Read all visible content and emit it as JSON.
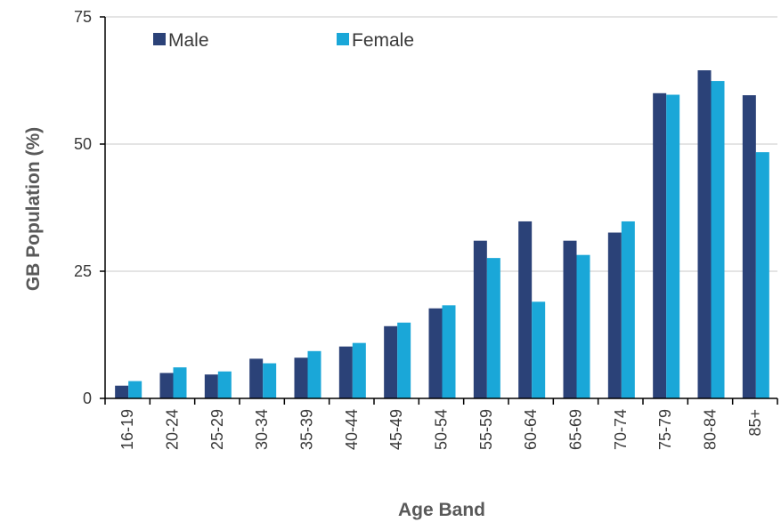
{
  "chart_data": {
    "type": "bar",
    "title": "",
    "xlabel": "Age Band",
    "ylabel": "GB Population (%)",
    "ylim": [
      0,
      75
    ],
    "yticks": [
      0,
      25,
      50,
      75
    ],
    "grid": true,
    "legend_position": "top-left",
    "categories": [
      "16-19",
      "20-24",
      "25-29",
      "30-34",
      "35-39",
      "40-44",
      "45-49",
      "50-54",
      "55-59",
      "60-64",
      "65-69",
      "70-74",
      "75-79",
      "80-84",
      "85+"
    ],
    "series": [
      {
        "name": "Male",
        "color": "#2b4278",
        "values": [
          2.5,
          5.0,
          4.7,
          7.8,
          8.0,
          10.2,
          14.2,
          17.7,
          31.0,
          34.8,
          31.0,
          32.6,
          60.0,
          64.5,
          59.6
        ]
      },
      {
        "name": "Female",
        "color": "#1aa7d8",
        "values": [
          3.4,
          6.1,
          5.3,
          6.9,
          9.3,
          10.9,
          14.9,
          18.3,
          27.6,
          19.0,
          28.2,
          34.8,
          59.7,
          62.4,
          48.4
        ]
      }
    ]
  }
}
